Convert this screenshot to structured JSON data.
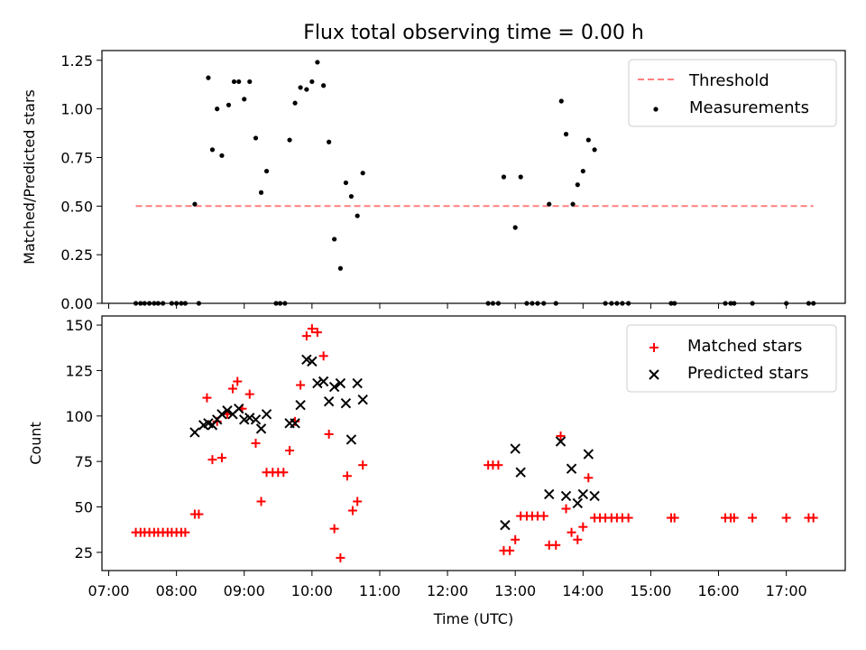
{
  "title": "Flux total observing time = 0.00 h",
  "colors": {
    "threshold": "#ff7f7f",
    "measurements": "#000000",
    "matched": "#ff0000",
    "predicted": "#000000"
  },
  "chart_data": [
    {
      "type": "scatter",
      "ylabel": "Matched/Predicted stars",
      "xlabel": "",
      "ylim": [
        0,
        1.3
      ],
      "xlim_hours": [
        6.9,
        17.87
      ],
      "yticks": [
        "0.00",
        "0.25",
        "0.50",
        "0.75",
        "1.00",
        "1.25"
      ],
      "yticks_values": [
        0,
        0.25,
        0.5,
        0.75,
        1.0,
        1.25
      ],
      "legend_position": "top-right",
      "threshold": {
        "name": "Threshold",
        "y": 0.5,
        "x_range": [
          7.4,
          17.4
        ]
      },
      "series": [
        {
          "name": "Measurements",
          "marker": "dot",
          "points": [
            [
              7.4,
              0
            ],
            [
              7.47,
              0
            ],
            [
              7.53,
              0
            ],
            [
              7.6,
              0
            ],
            [
              7.67,
              0
            ],
            [
              7.73,
              0
            ],
            [
              7.8,
              0
            ],
            [
              7.93,
              0
            ],
            [
              8.0,
              0
            ],
            [
              8.07,
              0
            ],
            [
              8.13,
              0
            ],
            [
              8.27,
              0.51
            ],
            [
              8.33,
              0
            ],
            [
              8.47,
              1.16
            ],
            [
              8.53,
              0.79
            ],
            [
              8.6,
              1.0
            ],
            [
              8.67,
              0.76
            ],
            [
              8.77,
              1.02
            ],
            [
              8.85,
              1.14
            ],
            [
              8.92,
              1.14
            ],
            [
              9.0,
              1.05
            ],
            [
              9.08,
              1.14
            ],
            [
              9.17,
              0.85
            ],
            [
              9.25,
              0.57
            ],
            [
              9.33,
              0.68
            ],
            [
              9.47,
              0
            ],
            [
              9.53,
              0
            ],
            [
              9.6,
              0
            ],
            [
              9.67,
              0.84
            ],
            [
              9.75,
              1.03
            ],
            [
              9.83,
              1.11
            ],
            [
              9.92,
              1.1
            ],
            [
              10.0,
              1.14
            ],
            [
              10.08,
              1.24
            ],
            [
              10.17,
              1.12
            ],
            [
              10.25,
              0.83
            ],
            [
              10.33,
              0.33
            ],
            [
              10.42,
              0.18
            ],
            [
              10.5,
              0.62
            ],
            [
              10.58,
              0.55
            ],
            [
              10.67,
              0.45
            ],
            [
              10.75,
              0.67
            ],
            [
              12.6,
              0
            ],
            [
              12.67,
              0
            ],
            [
              12.75,
              0
            ],
            [
              12.83,
              0.65
            ],
            [
              13.0,
              0.39
            ],
            [
              13.08,
              0.65
            ],
            [
              13.17,
              0
            ],
            [
              13.25,
              0
            ],
            [
              13.33,
              0
            ],
            [
              13.42,
              0
            ],
            [
              13.5,
              0.51
            ],
            [
              13.6,
              0
            ],
            [
              13.68,
              1.04
            ],
            [
              13.75,
              0.87
            ],
            [
              13.85,
              0.51
            ],
            [
              13.92,
              0.61
            ],
            [
              14.0,
              0.68
            ],
            [
              14.08,
              0.84
            ],
            [
              14.17,
              0.79
            ],
            [
              14.33,
              0
            ],
            [
              14.42,
              0
            ],
            [
              14.5,
              0
            ],
            [
              14.58,
              0
            ],
            [
              14.67,
              0
            ],
            [
              15.3,
              0
            ],
            [
              15.35,
              0
            ],
            [
              16.1,
              0
            ],
            [
              16.18,
              0
            ],
            [
              16.23,
              0
            ],
            [
              16.5,
              0
            ],
            [
              17.0,
              0
            ],
            [
              17.33,
              0
            ],
            [
              17.4,
              0
            ]
          ]
        }
      ]
    },
    {
      "type": "scatter",
      "ylabel": "Count",
      "xlabel": "Time (UTC)",
      "ylim": [
        15,
        155
      ],
      "xlim_hours": [
        6.9,
        17.87
      ],
      "yticks": [
        "25",
        "50",
        "75",
        "100",
        "125",
        "150"
      ],
      "yticks_values": [
        25,
        50,
        75,
        100,
        125,
        150
      ],
      "xticks": [
        "07:00",
        "08:00",
        "09:00",
        "10:00",
        "11:00",
        "12:00",
        "13:00",
        "14:00",
        "15:00",
        "16:00",
        "17:00"
      ],
      "xticks_values": [
        7,
        8,
        9,
        10,
        11,
        12,
        13,
        14,
        15,
        16,
        17
      ],
      "legend_position": "top-right",
      "series": [
        {
          "name": "Matched stars",
          "marker": "plus",
          "points": [
            [
              7.4,
              36
            ],
            [
              7.47,
              36
            ],
            [
              7.53,
              36
            ],
            [
              7.6,
              36
            ],
            [
              7.67,
              36
            ],
            [
              7.73,
              36
            ],
            [
              7.8,
              36
            ],
            [
              7.87,
              36
            ],
            [
              7.93,
              36
            ],
            [
              8.0,
              36
            ],
            [
              8.07,
              36
            ],
            [
              8.13,
              36
            ],
            [
              8.27,
              46
            ],
            [
              8.33,
              46
            ],
            [
              8.45,
              110
            ],
            [
              8.53,
              76
            ],
            [
              8.6,
              97
            ],
            [
              8.67,
              77
            ],
            [
              8.75,
              101
            ],
            [
              8.83,
              115
            ],
            [
              8.9,
              119
            ],
            [
              8.97,
              104
            ],
            [
              9.08,
              112
            ],
            [
              9.17,
              85
            ],
            [
              9.25,
              53
            ],
            [
              9.33,
              69
            ],
            [
              9.42,
              69
            ],
            [
              9.5,
              69
            ],
            [
              9.58,
              69
            ],
            [
              9.67,
              81
            ],
            [
              9.75,
              97
            ],
            [
              9.83,
              117
            ],
            [
              9.92,
              144
            ],
            [
              10.0,
              148
            ],
            [
              10.08,
              146
            ],
            [
              10.17,
              133
            ],
            [
              10.25,
              90
            ],
            [
              10.33,
              38
            ],
            [
              10.42,
              22
            ],
            [
              10.52,
              67
            ],
            [
              10.6,
              48
            ],
            [
              10.67,
              53
            ],
            [
              10.75,
              73
            ],
            [
              12.6,
              73
            ],
            [
              12.67,
              73
            ],
            [
              12.75,
              73
            ],
            [
              12.83,
              26
            ],
            [
              12.92,
              26
            ],
            [
              13.0,
              32
            ],
            [
              13.08,
              45
            ],
            [
              13.17,
              45
            ],
            [
              13.25,
              45
            ],
            [
              13.33,
              45
            ],
            [
              13.42,
              45
            ],
            [
              13.5,
              29
            ],
            [
              13.6,
              29
            ],
            [
              13.67,
              89
            ],
            [
              13.75,
              49
            ],
            [
              13.83,
              36
            ],
            [
              13.92,
              32
            ],
            [
              14.0,
              39
            ],
            [
              14.08,
              66
            ],
            [
              14.17,
              44
            ],
            [
              14.25,
              44
            ],
            [
              14.33,
              44
            ],
            [
              14.42,
              44
            ],
            [
              14.5,
              44
            ],
            [
              14.58,
              44
            ],
            [
              14.67,
              44
            ],
            [
              15.3,
              44
            ],
            [
              15.35,
              44
            ],
            [
              16.1,
              44
            ],
            [
              16.18,
              44
            ],
            [
              16.23,
              44
            ],
            [
              16.5,
              44
            ],
            [
              17.0,
              44
            ],
            [
              17.33,
              44
            ],
            [
              17.4,
              44
            ]
          ]
        },
        {
          "name": "Predicted stars",
          "marker": "x",
          "points": [
            [
              8.27,
              91
            ],
            [
              8.4,
              95
            ],
            [
              8.47,
              96
            ],
            [
              8.53,
              95
            ],
            [
              8.6,
              98
            ],
            [
              8.67,
              101
            ],
            [
              8.75,
              103
            ],
            [
              8.83,
              101
            ],
            [
              8.92,
              104
            ],
            [
              9.0,
              98
            ],
            [
              9.08,
              99
            ],
            [
              9.17,
              98
            ],
            [
              9.25,
              93
            ],
            [
              9.33,
              101
            ],
            [
              9.67,
              96
            ],
            [
              9.75,
              96
            ],
            [
              9.83,
              106
            ],
            [
              9.92,
              131
            ],
            [
              10.0,
              130
            ],
            [
              10.08,
              118
            ],
            [
              10.17,
              119
            ],
            [
              10.25,
              108
            ],
            [
              10.33,
              116
            ],
            [
              10.42,
              118
            ],
            [
              10.5,
              107
            ],
            [
              10.58,
              87
            ],
            [
              10.67,
              118
            ],
            [
              10.75,
              109
            ],
            [
              12.85,
              40
            ],
            [
              13.0,
              82
            ],
            [
              13.08,
              69
            ],
            [
              13.5,
              57
            ],
            [
              13.67,
              86
            ],
            [
              13.75,
              56
            ],
            [
              13.83,
              71
            ],
            [
              13.92,
              52
            ],
            [
              14.0,
              57
            ],
            [
              14.08,
              79
            ],
            [
              14.17,
              56
            ]
          ]
        }
      ]
    }
  ]
}
